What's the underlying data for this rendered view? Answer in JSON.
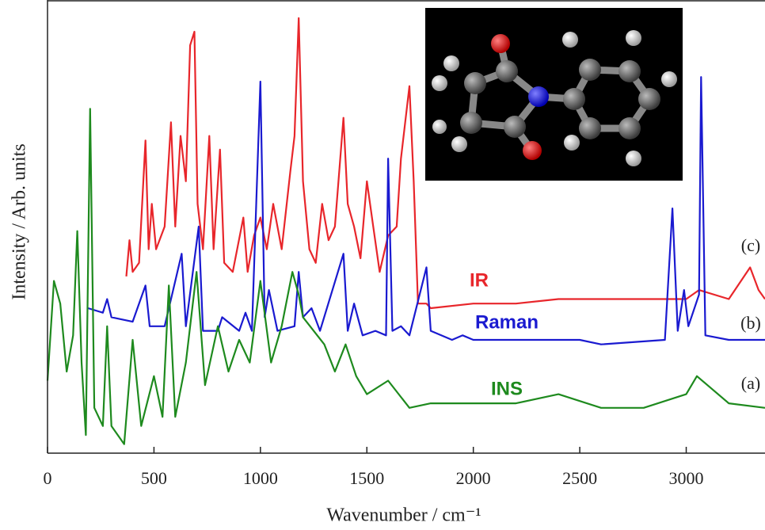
{
  "chart_data": {
    "type": "line",
    "x_label": "Wavenumber / cm⁻¹",
    "y_label": "Intensity / Arb. units",
    "xlim": [
      0,
      3370
    ],
    "ylim": [
      0,
      100
    ],
    "xticks": [
      0,
      500,
      1000,
      1500,
      2000,
      2500,
      3000
    ],
    "series": [
      {
        "name": "IR",
        "label": "(c)",
        "color": "#e8262b",
        "x": [
          370,
          385,
          400,
          430,
          460,
          475,
          490,
          510,
          550,
          580,
          600,
          625,
          650,
          670,
          690,
          705,
          730,
          760,
          780,
          810,
          830,
          870,
          920,
          940,
          970,
          1000,
          1030,
          1060,
          1100,
          1140,
          1160,
          1180,
          1200,
          1230,
          1260,
          1290,
          1320,
          1350,
          1390,
          1410,
          1440,
          1470,
          1500,
          1530,
          1560,
          1600,
          1640,
          1660,
          1700,
          1720,
          1740,
          1780,
          1800,
          2000,
          2200,
          2400,
          2600,
          2800,
          3000,
          3060,
          3200,
          3300,
          3340,
          3370
        ],
        "values": [
          39,
          47,
          40,
          42,
          69,
          45,
          55,
          45,
          50,
          73,
          50,
          70,
          60,
          90,
          93,
          55,
          45,
          70,
          45,
          67,
          42,
          40,
          52,
          40,
          48,
          52,
          45,
          55,
          45,
          62,
          70,
          96,
          60,
          45,
          42,
          55,
          47,
          50,
          74,
          55,
          50,
          43,
          60,
          50,
          40,
          48,
          50,
          65,
          81,
          60,
          33,
          33,
          32,
          33,
          33,
          34,
          34,
          34,
          34,
          36,
          34,
          41,
          36,
          34
        ]
      },
      {
        "name": "Raman",
        "label": "(b)",
        "color": "#1a1ad0",
        "x": [
          190,
          260,
          280,
          300,
          400,
          460,
          480,
          550,
          630,
          650,
          710,
          730,
          800,
          820,
          900,
          930,
          960,
          1000,
          1020,
          1040,
          1080,
          1160,
          1180,
          1200,
          1240,
          1280,
          1390,
          1410,
          1440,
          1480,
          1540,
          1590,
          1600,
          1620,
          1660,
          1700,
          1780,
          1800,
          1900,
          1950,
          2000,
          2500,
          2600,
          2900,
          2935,
          2960,
          2990,
          3010,
          3060,
          3070,
          3090,
          3200,
          3370
        ],
        "values": [
          32,
          31,
          34,
          30,
          29,
          37,
          28,
          28,
          44,
          28,
          50,
          27,
          27,
          30,
          27,
          31,
          27,
          82,
          30,
          36,
          27,
          28,
          40,
          30,
          32,
          27,
          44,
          27,
          33,
          26,
          27,
          26,
          65,
          27,
          28,
          26,
          41,
          27,
          25,
          26,
          25,
          25,
          24,
          25,
          54,
          27,
          36,
          28,
          35,
          83,
          26,
          25,
          25
        ]
      },
      {
        "name": "INS",
        "label": "(a)",
        "color": "#1e8a1e",
        "x": [
          0,
          30,
          60,
          90,
          120,
          140,
          160,
          180,
          200,
          220,
          260,
          280,
          300,
          360,
          400,
          440,
          500,
          540,
          570,
          600,
          650,
          700,
          740,
          800,
          850,
          900,
          950,
          1000,
          1050,
          1100,
          1150,
          1180,
          1200,
          1300,
          1350,
          1400,
          1450,
          1500,
          1600,
          1700,
          1800,
          2000,
          2200,
          2400,
          2600,
          2800,
          3000,
          3050,
          3100,
          3200,
          3370
        ],
        "values": [
          16,
          38,
          33,
          18,
          26,
          49,
          20,
          4,
          76,
          10,
          6,
          28,
          6,
          2,
          25,
          6,
          17,
          8,
          37,
          8,
          20,
          40,
          15,
          28,
          18,
          25,
          20,
          38,
          20,
          28,
          40,
          35,
          30,
          24,
          18,
          24,
          17,
          13,
          16,
          10,
          11,
          11,
          11,
          13,
          10,
          10,
          13,
          17,
          15,
          11,
          10
        ]
      }
    ]
  }
}
